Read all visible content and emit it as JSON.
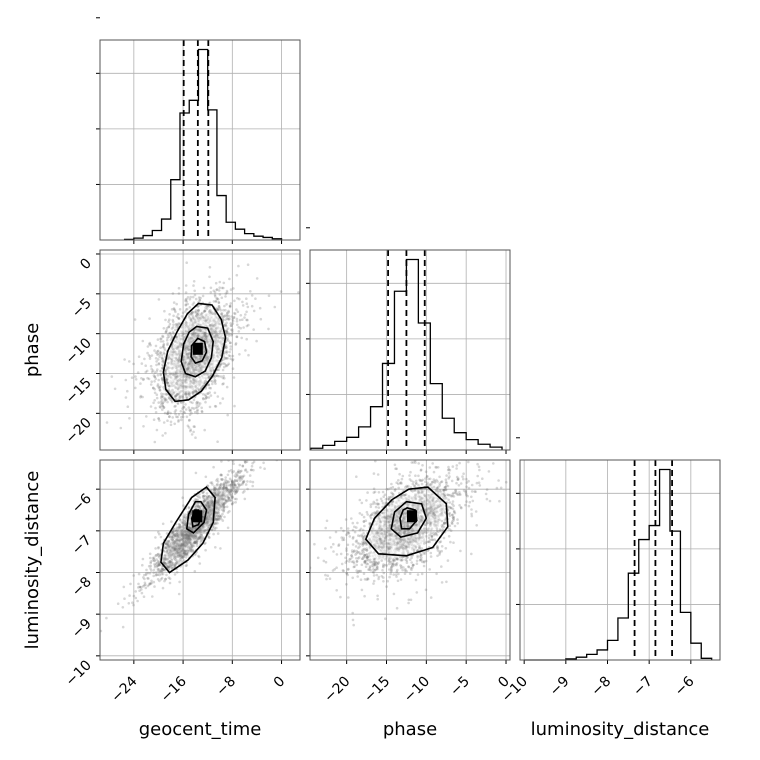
{
  "chart_data": {
    "type": "corner",
    "parameters": [
      "geocent_time",
      "phase",
      "luminosity_distance"
    ],
    "axis_labels": {
      "geocent_time": "geocent_time",
      "phase": "phase",
      "luminosity_distance": "luminosity_distance"
    },
    "ranges": {
      "geocent_time": [
        -29.5,
        3.0
      ],
      "phase": [
        -24.6,
        0.5
      ],
      "luminosity_distance": [
        -10.1,
        -5.3
      ]
    },
    "ticks": {
      "geocent_time": [
        -24,
        -16,
        -8,
        0
      ],
      "phase": [
        -20,
        -15,
        -10,
        -5,
        0
      ],
      "luminosity_distance": [
        -10,
        -9,
        -8,
        -7,
        -6
      ]
    },
    "tick_labels": {
      "geocent_time": [
        "−24",
        "−16",
        "−8",
        "0"
      ],
      "phase": [
        "−20",
        "−15",
        "−10",
        "−5",
        "0"
      ],
      "luminosity_distance": [
        "−10",
        "−9",
        "−8",
        "−7",
        "−6"
      ]
    },
    "quantiles": {
      "geocent_time": [
        -15.9,
        -13.6,
        -11.9
      ],
      "phase": [
        -14.8,
        -12.5,
        -10.2
      ],
      "luminosity_distance": [
        -7.35,
        -6.85,
        -6.45
      ]
    },
    "histograms": {
      "geocent_time": {
        "edges": [
          -25.5,
          -24,
          -22.5,
          -21,
          -19.5,
          -18,
          -16.5,
          -15,
          -13.5,
          -12,
          -10.5,
          -9,
          -7.5,
          -6,
          -4.5,
          -3,
          -1.5,
          0
        ],
        "counts": [
          1,
          3,
          7,
          15,
          33,
          95,
          200,
          220,
          300,
          205,
          70,
          28,
          17,
          10,
          6,
          4,
          2
        ]
      },
      "phase": {
        "edges": [
          -24.5,
          -23,
          -21.5,
          -20,
          -18.5,
          -17,
          -15.5,
          -14,
          -12.5,
          -11,
          -9.5,
          -8,
          -6.5,
          -5,
          -3.5,
          -2,
          -0.5
        ],
        "counts": [
          3,
          8,
          15,
          22,
          40,
          75,
          150,
          275,
          330,
          220,
          115,
          55,
          30,
          18,
          10,
          5
        ]
      },
      "luminosity_distance": {
        "edges": [
          -10,
          -9.75,
          -9.5,
          -9.25,
          -9,
          -8.75,
          -8.5,
          -8.25,
          -8,
          -7.75,
          -7.5,
          -7.25,
          -7,
          -6.75,
          -6.5,
          -6.25,
          -6,
          -5.75,
          -5.5
        ],
        "counts": [
          0,
          0,
          0,
          0,
          2,
          5,
          10,
          18,
          35,
          75,
          155,
          215,
          240,
          340,
          230,
          85,
          30,
          3
        ]
      }
    },
    "pairs": [
      {
        "x": "geocent_time",
        "y": "phase",
        "mean": [
          -14,
          -12.5
        ],
        "sd": [
          3.3,
          3.6
        ],
        "rho": 0.45,
        "n_points": 2600,
        "peak": [
          -13.6,
          -11.9
        ],
        "contours": [
          [
            [
              -13.5,
              -6.2
            ],
            [
              -11.3,
              -6.4
            ],
            [
              -9.8,
              -8.2
            ],
            [
              -9.1,
              -10.5
            ],
            [
              -9.7,
              -13
            ],
            [
              -11.2,
              -15.3
            ],
            [
              -13,
              -17.2
            ],
            [
              -15.1,
              -18.3
            ],
            [
              -17.3,
              -18.5
            ],
            [
              -18.8,
              -17
            ],
            [
              -19.2,
              -14.8
            ],
            [
              -18.5,
              -12.2
            ],
            [
              -17,
              -9.8
            ],
            [
              -15.3,
              -7.5
            ]
          ],
          [
            [
              -13.8,
              -9.1
            ],
            [
              -12,
              -9.3
            ],
            [
              -11.1,
              -11
            ],
            [
              -11.4,
              -13
            ],
            [
              -12.4,
              -14.7
            ],
            [
              -14,
              -15.4
            ],
            [
              -15.6,
              -15
            ],
            [
              -16.3,
              -13.5
            ],
            [
              -15.9,
              -11.3
            ],
            [
              -15,
              -9.8
            ]
          ],
          [
            [
              -13.6,
              -10.6
            ],
            [
              -12.5,
              -11
            ],
            [
              -12.2,
              -12.3
            ],
            [
              -12.9,
              -13.4
            ],
            [
              -14,
              -13.7
            ],
            [
              -14.7,
              -12.9
            ],
            [
              -14.6,
              -11.5
            ]
          ]
        ]
      },
      {
        "x": "geocent_time",
        "y": "luminosity_distance",
        "mean": [
          -13.8,
          -6.85
        ],
        "sd": [
          3.5,
          0.6
        ],
        "rho": 0.9,
        "n_points": 2600,
        "peak": [
          -13.7,
          -6.65
        ],
        "contours": [
          [
            [
              -12.2,
              -5.95
            ],
            [
              -10.8,
              -6.2
            ],
            [
              -11.1,
              -6.8
            ],
            [
              -12.8,
              -7.3
            ],
            [
              -15.2,
              -7.7
            ],
            [
              -18.2,
              -8.0
            ],
            [
              -19.6,
              -7.75
            ],
            [
              -19.2,
              -7.3
            ],
            [
              -17.2,
              -6.8
            ],
            [
              -14.6,
              -6.2
            ]
          ],
          [
            [
              -13.1,
              -6.3
            ],
            [
              -12.2,
              -6.5
            ],
            [
              -12.6,
              -6.8
            ],
            [
              -14.3,
              -7.05
            ],
            [
              -15.4,
              -6.95
            ],
            [
              -15.1,
              -6.6
            ],
            [
              -14,
              -6.3
            ]
          ],
          [
            [
              -13.5,
              -6.5
            ],
            [
              -13,
              -6.65
            ],
            [
              -13.5,
              -6.85
            ],
            [
              -14.4,
              -6.9
            ],
            [
              -14.6,
              -6.7
            ],
            [
              -14.1,
              -6.5
            ]
          ]
        ]
      },
      {
        "x": "phase",
        "y": "luminosity_distance",
        "mean": [
          -12.5,
          -6.85
        ],
        "sd": [
          3.5,
          0.6
        ],
        "rho": 0.55,
        "n_points": 2600,
        "peak": [
          -11.8,
          -6.65
        ],
        "contours": [
          [
            [
              -12.2,
              -6.0
            ],
            [
              -9.8,
              -5.95
            ],
            [
              -7.5,
              -6.35
            ],
            [
              -7.3,
              -6.9
            ],
            [
              -9.2,
              -7.4
            ],
            [
              -12.5,
              -7.6
            ],
            [
              -16,
              -7.55
            ],
            [
              -17.6,
              -7.2
            ],
            [
              -16.5,
              -6.7
            ],
            [
              -14.3,
              -6.25
            ]
          ],
          [
            [
              -12.5,
              -6.3
            ],
            [
              -10.6,
              -6.35
            ],
            [
              -10,
              -6.7
            ],
            [
              -11.1,
              -7.05
            ],
            [
              -13.2,
              -7.15
            ],
            [
              -14.4,
              -6.95
            ],
            [
              -14,
              -6.55
            ]
          ],
          [
            [
              -12.4,
              -6.45
            ],
            [
              -11.4,
              -6.5
            ],
            [
              -11.2,
              -6.75
            ],
            [
              -12.1,
              -6.95
            ],
            [
              -13.1,
              -6.95
            ],
            [
              -13.3,
              -6.7
            ],
            [
              -12.9,
              -6.5
            ]
          ]
        ]
      }
    ]
  }
}
